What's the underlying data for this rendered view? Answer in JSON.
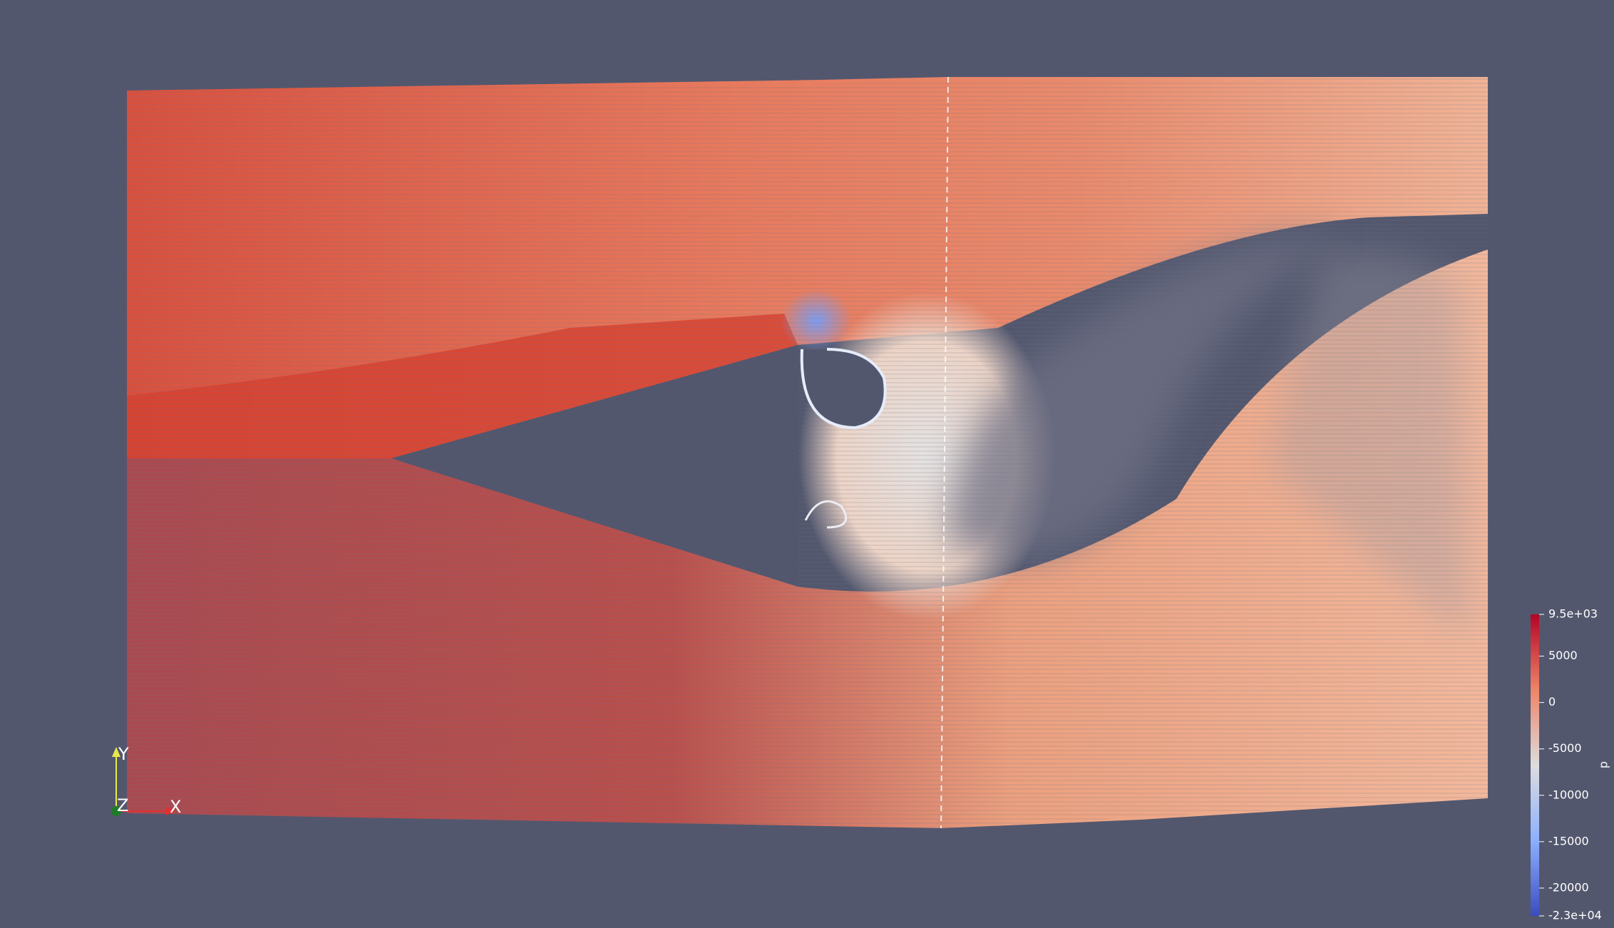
{
  "color_legend": {
    "title": "p",
    "range": [
      -23000,
      9500
    ],
    "ticks": [
      {
        "value": 9500,
        "label": "9.5e+03"
      },
      5000,
      0,
      -5000,
      -10000,
      -15000,
      -20000,
      {
        "value": -23000,
        "label": "-2.3e+04"
      }
    ]
  },
  "orientation_axes": {
    "x": "X",
    "y": "Y",
    "z": "Z"
  }
}
